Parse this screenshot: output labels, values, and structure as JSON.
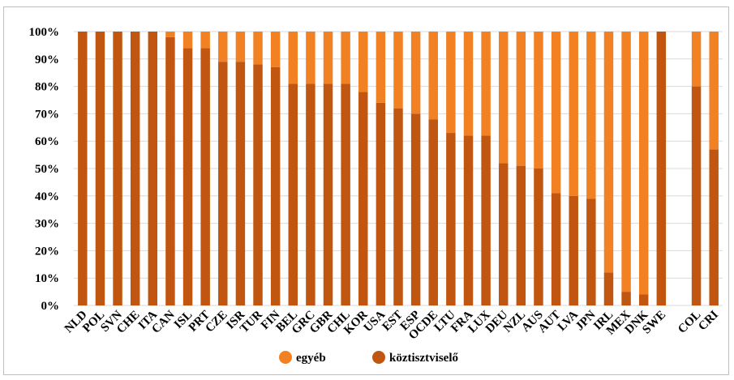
{
  "chart_data": {
    "type": "bar",
    "stacked": true,
    "title": "",
    "xlabel": "",
    "ylabel": "",
    "ylim": [
      0,
      100
    ],
    "y_tick_labels": [
      "0%",
      "10%",
      "20%",
      "30%",
      "40%",
      "50%",
      "60%",
      "70%",
      "80%",
      "90%",
      "100%"
    ],
    "grid": true,
    "legend_position": "bottom",
    "categories": [
      "NLD",
      "POL",
      "SVN",
      "CHE",
      "ITA",
      "CAN",
      "ISL",
      "PRT",
      "CZE",
      "ISR",
      "TUR",
      "FIN",
      "BEL",
      "GRC",
      "GBR",
      "CHL",
      "KOR",
      "USA",
      "EST",
      "ESP",
      "OCDE",
      "LTU",
      "FRA",
      "LUX",
      "DEU",
      "NZL",
      "AUS",
      "AUT",
      "LVA",
      "JPN",
      "IRL",
      "MEX",
      "DNK",
      "SWE",
      "",
      "COL",
      "CRI"
    ],
    "series": [
      {
        "name": "köztisztviselő",
        "color": "#c0560f",
        "values": [
          100,
          100,
          100,
          100,
          100,
          98,
          94,
          94,
          89,
          89,
          88,
          87,
          81,
          81,
          81,
          81,
          78,
          74,
          72,
          70,
          68,
          63,
          62,
          62,
          52,
          51,
          50,
          41,
          40,
          39,
          12,
          5,
          4,
          100,
          null,
          80,
          57
        ]
      },
      {
        "name": "egyéb",
        "color": "#f28124",
        "values": [
          0,
          0,
          0,
          0,
          0,
          2,
          6,
          6,
          11,
          11,
          12,
          13,
          19,
          19,
          19,
          19,
          22,
          26,
          28,
          30,
          32,
          37,
          38,
          38,
          48,
          49,
          50,
          59,
          60,
          61,
          88,
          95,
          96,
          0,
          null,
          20,
          43
        ]
      }
    ]
  }
}
